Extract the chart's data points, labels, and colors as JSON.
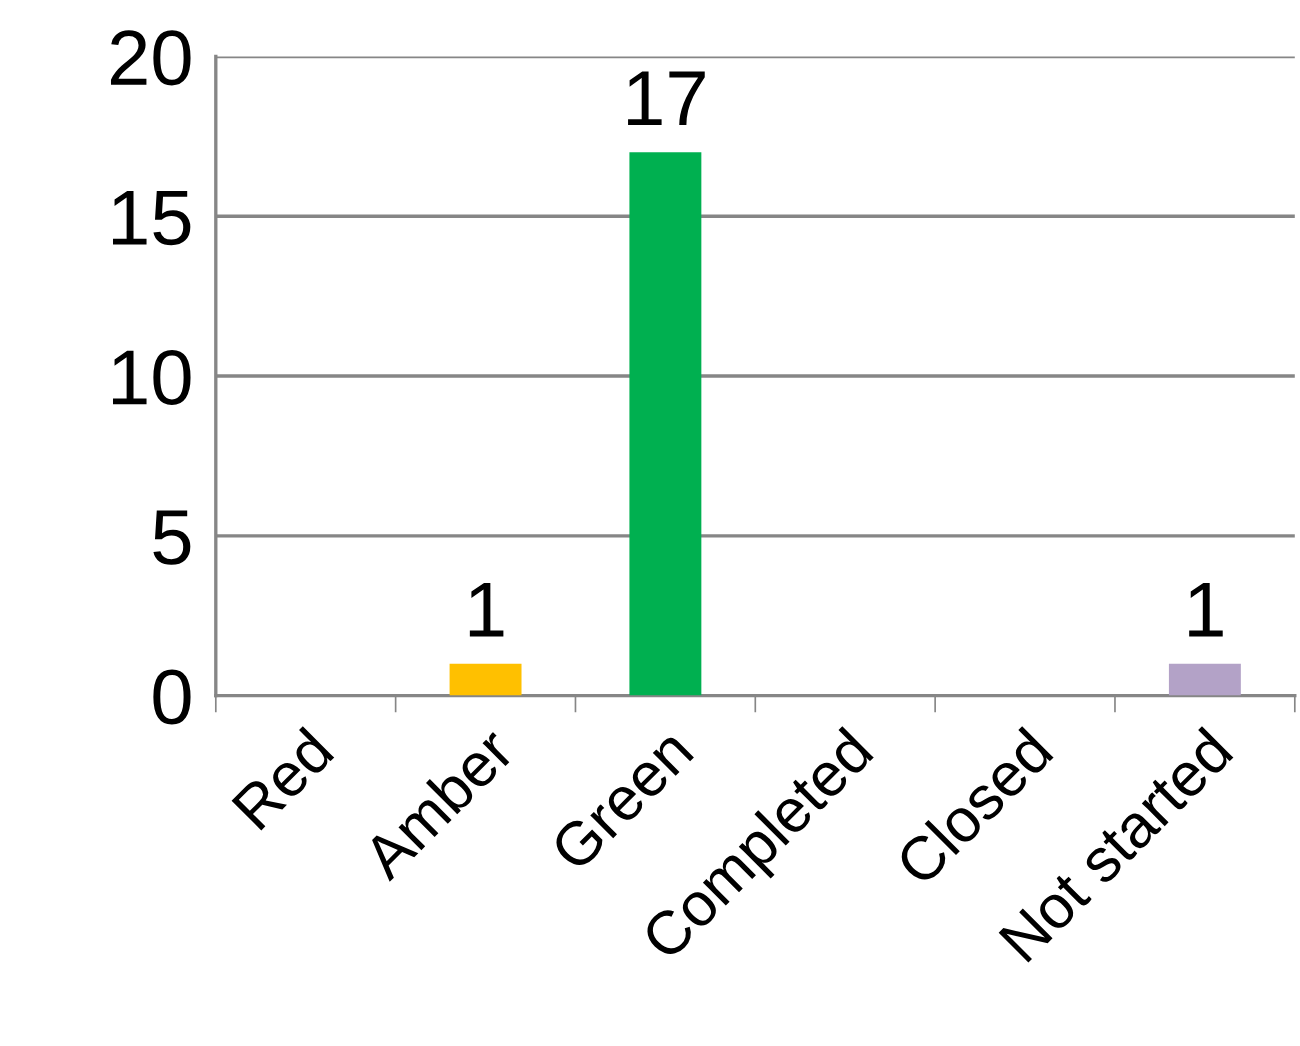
{
  "chart_data": {
    "type": "bar",
    "categories": [
      "Red",
      "Amber",
      "Green",
      "Completed",
      "Closed",
      "Not started"
    ],
    "values": [
      0,
      1,
      17,
      0,
      0,
      1
    ],
    "colors": [
      "#ff0000",
      "#ffc000",
      "#00b050",
      "#0070c0",
      "#7f7f7f",
      "#b3a2c7"
    ],
    "value_labels": [
      null,
      "1",
      "17",
      null,
      null,
      "1"
    ],
    "ylim": [
      0,
      20
    ],
    "yticks": [
      0,
      5,
      10,
      15,
      20
    ],
    "grid": "y",
    "legend": false
  }
}
